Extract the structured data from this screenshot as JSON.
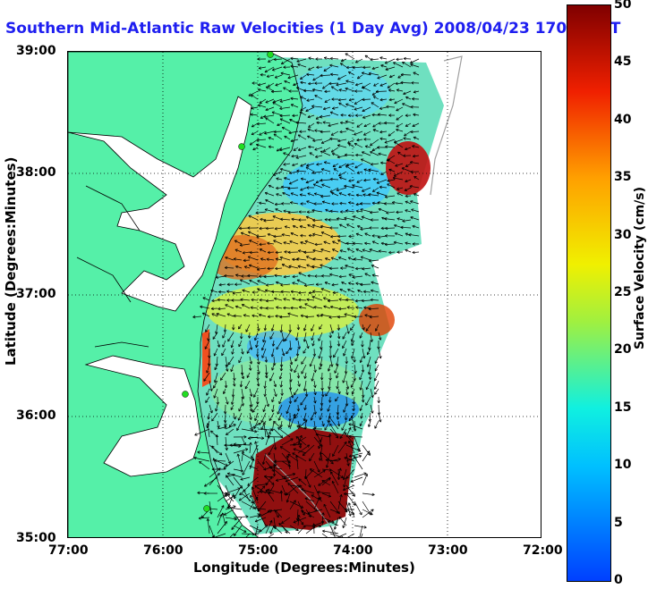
{
  "title": "Southern Mid-Atlantic Raw Velocities (1 Day Avg) 2008/04/23 1700 GMT",
  "x_axis": {
    "label": "Longitude (Degrees:Minutes)",
    "ticks": [
      "77:00",
      "76:00",
      "75:00",
      "74:00",
      "73:00",
      "72:00"
    ]
  },
  "y_axis": {
    "label": "Latitude (Degrees:Minutes)",
    "ticks": [
      "39:00",
      "38:00",
      "37:00",
      "36:00",
      "35:00"
    ]
  },
  "colorbar": {
    "label": "Surface Velocity (cm/s)",
    "min": 0,
    "max": 50,
    "ticks": [
      "50",
      "45",
      "40",
      "35",
      "30",
      "25",
      "20",
      "15",
      "10",
      "5",
      "0"
    ]
  },
  "map": {
    "lon_range": [
      -77,
      -72
    ],
    "lat_range": [
      35,
      39
    ],
    "land_color": "#55f0a8",
    "grid": "dotted",
    "markers_color": "#22dd22"
  }
}
